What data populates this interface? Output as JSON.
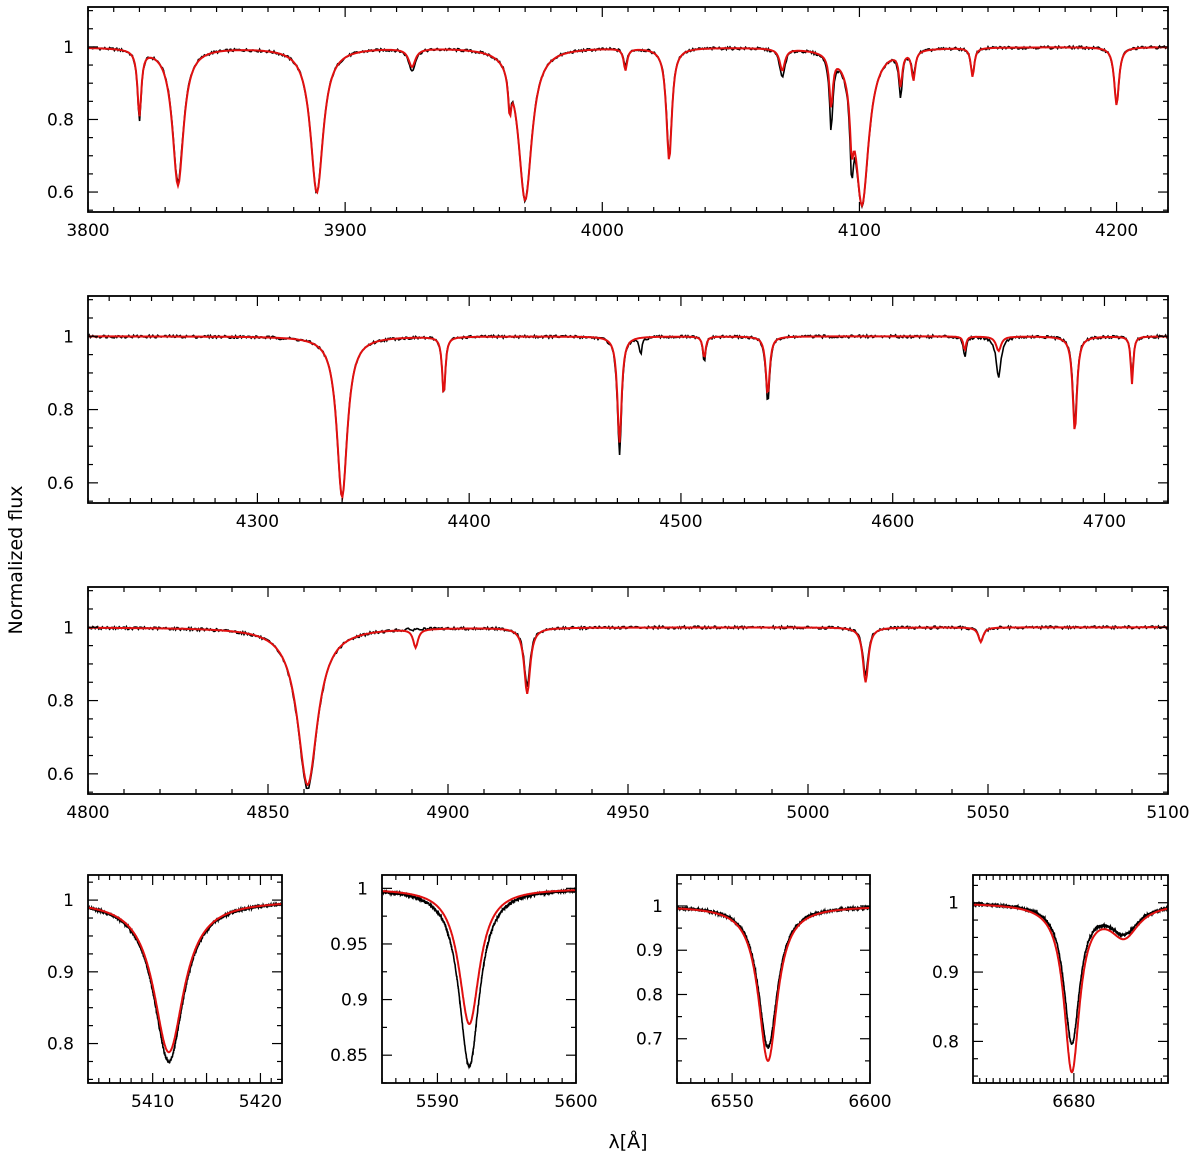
{
  "figure": {
    "ylabel": "Normalized flux",
    "xlabel": "λ[Å]"
  },
  "colors": {
    "observed": "#000000",
    "model": "#e01010",
    "frame": "#000000"
  },
  "chart_data": [
    {
      "type": "line",
      "name": "panel-1",
      "xlim": [
        3800,
        4220
      ],
      "ylim": [
        0.545,
        1.11
      ],
      "xticks": [
        3800,
        3900,
        4000,
        4100,
        4200
      ],
      "yticks": [
        0.6,
        0.8,
        1
      ],
      "continuum": 1.0,
      "lines": [
        {
          "center": 3820,
          "obs_depth": 0.19,
          "model_depth": 0.18,
          "width": 0.9
        },
        {
          "center": 3835,
          "obs_depth": 0.37,
          "model_depth": 0.38,
          "width": 2.6
        },
        {
          "center": 3889,
          "obs_depth": 0.4,
          "model_depth": 0.4,
          "width": 3.0
        },
        {
          "center": 3926,
          "obs_depth": 0.06,
          "model_depth": 0.05,
          "width": 1.6
        },
        {
          "center": 3964,
          "obs_depth": 0.09,
          "model_depth": 0.1,
          "width": 0.7
        },
        {
          "center": 3970,
          "obs_depth": 0.42,
          "model_depth": 0.42,
          "width": 3.2
        },
        {
          "center": 4009,
          "obs_depth": 0.05,
          "model_depth": 0.06,
          "width": 0.8
        },
        {
          "center": 4026,
          "obs_depth": 0.3,
          "model_depth": 0.31,
          "width": 1.3
        },
        {
          "center": 4070,
          "obs_depth": 0.08,
          "model_depth": 0.06,
          "width": 1.2
        },
        {
          "center": 4089,
          "obs_depth": 0.2,
          "model_depth": 0.14,
          "width": 0.8
        },
        {
          "center": 4097,
          "obs_depth": 0.2,
          "model_depth": 0.14,
          "width": 0.8
        },
        {
          "center": 4101,
          "obs_depth": 0.43,
          "model_depth": 0.43,
          "width": 3.2
        },
        {
          "center": 4116,
          "obs_depth": 0.12,
          "model_depth": 0.09,
          "width": 0.8
        },
        {
          "center": 4121,
          "obs_depth": 0.07,
          "model_depth": 0.08,
          "width": 0.8
        },
        {
          "center": 4144,
          "obs_depth": 0.08,
          "model_depth": 0.08,
          "width": 0.8
        },
        {
          "center": 4200,
          "obs_depth": 0.16,
          "model_depth": 0.16,
          "width": 1.1
        }
      ]
    },
    {
      "type": "line",
      "name": "panel-2",
      "xlim": [
        4220,
        4730
      ],
      "ylim": [
        0.545,
        1.11
      ],
      "xticks": [
        4300,
        4400,
        4500,
        4600,
        4700
      ],
      "yticks": [
        0.6,
        0.8,
        1
      ],
      "continuum": 1.0,
      "lines": [
        {
          "center": 4340,
          "obs_depth": 0.44,
          "model_depth": 0.44,
          "width": 3.0
        },
        {
          "center": 4388,
          "obs_depth": 0.16,
          "model_depth": 0.16,
          "width": 0.9
        },
        {
          "center": 4471,
          "obs_depth": 0.32,
          "model_depth": 0.29,
          "width": 1.2
        },
        {
          "center": 4481,
          "obs_depth": 0.05,
          "model_depth": 0.0,
          "width": 0.7
        },
        {
          "center": 4511,
          "obs_depth": 0.07,
          "model_depth": 0.06,
          "width": 0.8
        },
        {
          "center": 4541,
          "obs_depth": 0.18,
          "model_depth": 0.16,
          "width": 1.1
        },
        {
          "center": 4634,
          "obs_depth": 0.06,
          "model_depth": 0.04,
          "width": 0.7
        },
        {
          "center": 4650,
          "obs_depth": 0.11,
          "model_depth": 0.04,
          "width": 1.4
        },
        {
          "center": 4686,
          "obs_depth": 0.24,
          "model_depth": 0.26,
          "width": 1.2
        },
        {
          "center": 4713,
          "obs_depth": 0.12,
          "model_depth": 0.13,
          "width": 0.7
        }
      ]
    },
    {
      "type": "line",
      "name": "panel-3",
      "xlim": [
        4800,
        5100
      ],
      "ylim": [
        0.545,
        1.11
      ],
      "xticks": [
        4800,
        4850,
        4900,
        4950,
        5000,
        5050,
        5100
      ],
      "yticks": [
        0.6,
        0.8,
        1
      ],
      "continuum": 1.0,
      "lines": [
        {
          "center": 4861,
          "obs_depth": 0.44,
          "model_depth": 0.43,
          "width": 3.4
        },
        {
          "center": 4891,
          "obs_depth": 0.0,
          "model_depth": 0.05,
          "width": 0.8
        },
        {
          "center": 4922,
          "obs_depth": 0.16,
          "model_depth": 0.18,
          "width": 1.0
        },
        {
          "center": 5016,
          "obs_depth": 0.13,
          "model_depth": 0.15,
          "width": 0.9
        },
        {
          "center": 5048,
          "obs_depth": 0.04,
          "model_depth": 0.04,
          "width": 0.8
        }
      ]
    },
    {
      "type": "line",
      "name": "panel-4",
      "xlim": [
        5404,
        5422
      ],
      "ylim": [
        0.745,
        1.035
      ],
      "xticks": [
        5410,
        5415,
        5420
      ],
      "xtick_labels": [
        "5410",
        "",
        "5420"
      ],
      "yticks": [
        0.8,
        0.9,
        1
      ],
      "continuum": 1.0,
      "lines": [
        {
          "center": 5411.5,
          "obs_depth": 0.225,
          "model_depth": 0.212,
          "width": 1.7
        }
      ]
    },
    {
      "type": "line",
      "name": "panel-5",
      "xlim": [
        5586,
        5600
      ],
      "ylim": [
        0.825,
        1.012
      ],
      "xticks": [
        5590,
        5595,
        5600
      ],
      "xtick_labels": [
        "5590",
        "",
        "5600"
      ],
      "yticks": [
        0.85,
        0.9,
        0.95,
        1
      ],
      "continuum": 1.0,
      "lines": [
        {
          "center": 5592.3,
          "obs_depth": 0.16,
          "model_depth": 0.122,
          "width": 0.9
        }
      ]
    },
    {
      "type": "line",
      "name": "panel-6",
      "xlim": [
        6530,
        6600
      ],
      "ylim": [
        0.6,
        1.07
      ],
      "xticks": [
        6550,
        6600
      ],
      "yticks": [
        0.7,
        0.8,
        0.9,
        1
      ],
      "continuum": 1.0,
      "lines": [
        {
          "center": 6563,
          "obs_depth": 0.32,
          "model_depth": 0.35,
          "width": 4.2
        }
      ]
    },
    {
      "type": "line",
      "name": "panel-7",
      "xlim": [
        6665,
        6694
      ],
      "ylim": [
        0.74,
        1.04
      ],
      "xticks": [
        6680
      ],
      "yticks": [
        0.8,
        0.9,
        1
      ],
      "continuum": 1.0,
      "lines": [
        {
          "center": 6679.7,
          "obs_depth": 0.2,
          "model_depth": 0.24,
          "width": 1.4
        },
        {
          "center": 6687.5,
          "obs_depth": 0.04,
          "model_depth": 0.045,
          "width": 2.6
        }
      ]
    }
  ]
}
